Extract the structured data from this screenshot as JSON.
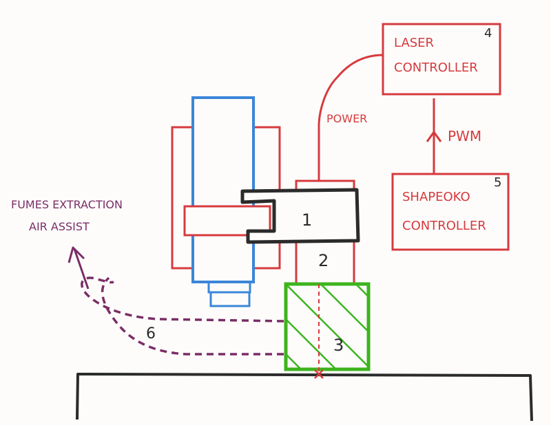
{
  "colors": {
    "paper": "#fdfcfb",
    "red": "#d63a3d",
    "blue": "#3b86d8",
    "black": "#2b2b2b",
    "green": "#3db41e",
    "purple": "#7a2d66"
  },
  "labels": {
    "laser_line1": "LASER",
    "laser_line2": "CONTROLLER",
    "laser_num": "4",
    "shapeoko_line1": "SHAPEOKO",
    "shapeoko_line2": "CONTROLLER",
    "shapeoko_num": "5",
    "power": "POWER",
    "pwm": "PWM",
    "fumes_line1": "FUMES EXTRACTION",
    "fumes_line2": "AIR ASSIST",
    "part1": "1",
    "part2": "2",
    "part3": "3",
    "part6": "6"
  }
}
